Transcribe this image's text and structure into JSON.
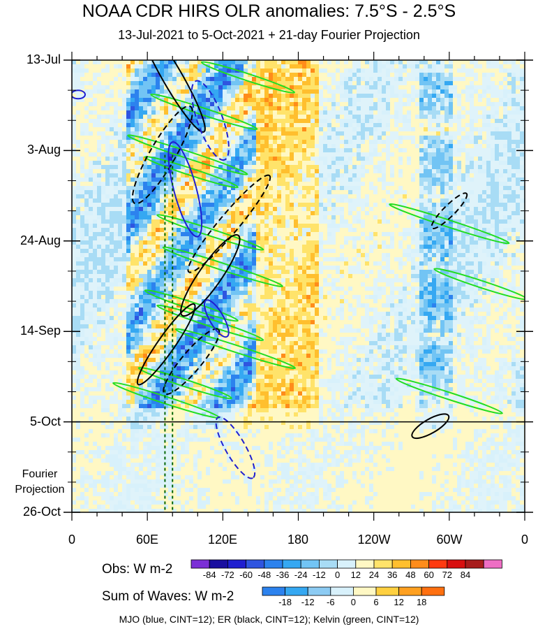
{
  "chart_data": {
    "type": "heatmap",
    "title": "NOAA CDR HIRS OLR anomalies: 7.5°S - 2.5°S",
    "subtitle": "13-Jul-2021 to 5-Oct-2021 + 21-day Fourier Projection",
    "y_ticks": [
      "13-Jul",
      "3-Aug",
      "24-Aug",
      "14-Sep",
      "5-Oct",
      "26-Oct"
    ],
    "fourier_label": "Fourier Projection",
    "x_ticks": [
      "0",
      "60E",
      "120E",
      "180",
      "120W",
      "60W",
      "0"
    ],
    "x_range_deg": [
      0,
      360
    ],
    "colorbar_obs": {
      "label": "Obs: W m-2",
      "ticks": [
        "-84",
        "-72",
        "-60",
        "-48",
        "-36",
        "-24",
        "-12",
        "0",
        "12",
        "24",
        "36",
        "48",
        "60",
        "72",
        "84"
      ],
      "colors": [
        "#7b2fd6",
        "#1a0fa0",
        "#1f1fd0",
        "#2f55e0",
        "#2c82ee",
        "#35a8f2",
        "#72c4f4",
        "#a8dcf5",
        "#d8f1fb",
        "#fff8c4",
        "#ffe36a",
        "#ffbf2e",
        "#ff8c1a",
        "#ff3a10",
        "#d81010",
        "#a81c1c",
        "#ee6ec4"
      ]
    },
    "colorbar_waves": {
      "label": "Sum of Waves: W m-2",
      "ticks": [
        "-18",
        "-12",
        "-6",
        "0",
        "6",
        "12",
        "18"
      ],
      "colors": [
        "#2c82ee",
        "#35a8f2",
        "#8ccbf3",
        "#d8f1fb",
        "#fff8c4",
        "#ffd040",
        "#ffa020",
        "#ff7010"
      ]
    },
    "footnote": "MJO (blue, CINT=12); ER (black, CINT=12); Kelvin (green, CINT=12)",
    "series_colors": {
      "mjo": "#1f1fd0",
      "er": "#000000",
      "kelvin": "#22dd22",
      "reference": "#006400"
    }
  }
}
